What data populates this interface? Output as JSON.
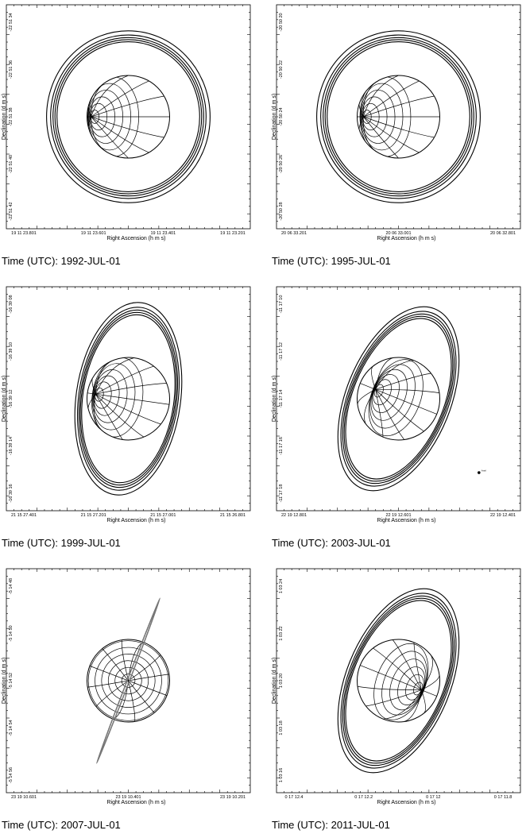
{
  "figure": {
    "panels": [
      {
        "id": "1992",
        "caption": "Time (UTC):  1992-JUL-01",
        "xlabel": "Right Ascension (h m s)",
        "ylabel": "Declination (d m s)",
        "xticks": [
          "19 11 23.801",
          "19 11 23.601",
          "19 11 23.401",
          "19 11 23.201"
        ],
        "yticks": [
          "-22 51 34",
          "-22 51 36",
          "-22 51 38",
          "-22 51 40",
          "-22 51 42"
        ],
        "tilt_deg": 0,
        "ring_aspect": 0.87,
        "rings_in_front_of_planet": false,
        "pole_position": -0.9,
        "moon_label": ""
      },
      {
        "id": "1995",
        "caption": "Time (UTC):  1995-JUL-01",
        "xlabel": "Right Ascension (h m s)",
        "ylabel": "Declination (d m s)",
        "xticks": [
          "20 06 33.201",
          "20 06 33.001",
          "20 06 32.801"
        ],
        "yticks": [
          "-20 50 20",
          "-20 50 22",
          "-20 50 24",
          "-20 50 26",
          "-20 50 28"
        ],
        "tilt_deg": 0,
        "ring_aspect": 0.85,
        "rings_in_front_of_planet": false,
        "pole_position": -0.85,
        "moon_label": ""
      },
      {
        "id": "1999",
        "caption": "Time (UTC):  1999-JUL-01",
        "xlabel": "Right Ascension (h m s)",
        "ylabel": "Declination (d m s)",
        "xticks": [
          "21 15 27.401",
          "21 15 27.201",
          "21 15 27.001",
          "21 15 26.801"
        ],
        "yticks": [
          "-16 39 08",
          "-16 39 10",
          "-16 39 12",
          "-16 39 14",
          "-16 39 16"
        ],
        "tilt_deg": 8,
        "ring_aspect": 0.5,
        "rings_in_front_of_planet": false,
        "pole_position": -0.8,
        "moon_label": ""
      },
      {
        "id": "2003",
        "caption": "Time (UTC):  2003-JUL-01",
        "xlabel": "Right Ascension (h m s)",
        "ylabel": "Declination (d m s)",
        "xticks": [
          "22 19 12.801",
          "22 19 12.601",
          "22 19 12.401"
        ],
        "yticks": [
          "-11 17 10",
          "-11 17 12",
          "-11 17 14",
          "-11 17 16",
          "-11 17 18"
        ],
        "tilt_deg": 22,
        "ring_aspect": 0.22,
        "rings_in_front_of_planet": true,
        "pole_position": -0.6,
        "moon_label": "Ariel"
      },
      {
        "id": "2007",
        "caption": "Time (UTC):  2007-JUL-01",
        "xlabel": "Right Ascension (h m s)",
        "ylabel": "Declination (d m s)",
        "xticks": [
          "23 19 10.601",
          "23 19 10.401",
          "23 19 10.201"
        ],
        "yticks": [
          "-5 14 48",
          "-5 14 50",
          "-5 14 52",
          "-5 14 54",
          "-5 14 56"
        ],
        "tilt_deg": 21,
        "ring_aspect": 0.02,
        "rings_in_front_of_planet": true,
        "pole_position": 0,
        "moon_label": ""
      },
      {
        "id": "2011",
        "caption": "Time (UTC):  2011-JUL-01",
        "xlabel": "Right Ascension (h m s)",
        "ylabel": "Declination (d m s)",
        "xticks": [
          "0 17 12.4",
          "0 17 12.2",
          "0 17 12",
          "0 17 11.8"
        ],
        "yticks": [
          "1 03 24",
          "1 03 22",
          "1 03 20",
          "1 03 18",
          "1 03 16"
        ],
        "tilt_deg": 22,
        "ring_aspect": 0.22,
        "rings_in_front_of_planet": true,
        "pole_position": 0.6,
        "moon_label": ""
      }
    ],
    "colors": {
      "ink": "#000000",
      "edge_on_ring": "#777777",
      "background": "#ffffff"
    }
  }
}
